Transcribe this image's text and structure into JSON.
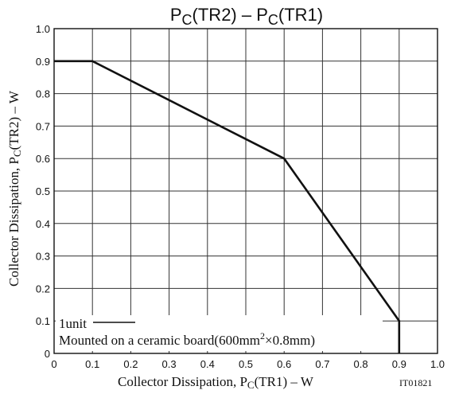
{
  "chart_data": {
    "type": "line",
    "title": {
      "main": "P",
      "sub": "C",
      "mid": "(TR2)  –  P",
      "sub2": "C",
      "end": "(TR1)"
    },
    "xlabel": {
      "pre": "Collector Dissipation, P",
      "sub": "C",
      "post": "(TR1)  –  W"
    },
    "ylabel": {
      "pre": "Collector Dissipation, P",
      "sub": "C",
      "post": "(TR2)  –  W"
    },
    "xlim": [
      0,
      1.0
    ],
    "ylim": [
      0,
      1.0
    ],
    "x_ticks": [
      "0",
      "0.1",
      "0.2",
      "0.3",
      "0.4",
      "0.5",
      "0.6",
      "0.7",
      "0.8",
      "0.9",
      "1.0"
    ],
    "y_ticks": [
      "0",
      "0.1",
      "0.2",
      "0.3",
      "0.4",
      "0.5",
      "0.6",
      "0.7",
      "0.8",
      "0.9",
      "1.0"
    ],
    "grid": true,
    "series": [
      {
        "x": [
          0,
          0.1,
          0.6,
          0.9,
          0.9
        ],
        "y": [
          0.9,
          0.9,
          0.6,
          0.1,
          0
        ]
      }
    ],
    "annotations": {
      "line1": "1unit",
      "line2_pre": "Mounted on a ceramic board(600mm",
      "line2_sup": "2",
      "line2_post": "×0.8mm)"
    },
    "figure_id": "IT01821"
  }
}
